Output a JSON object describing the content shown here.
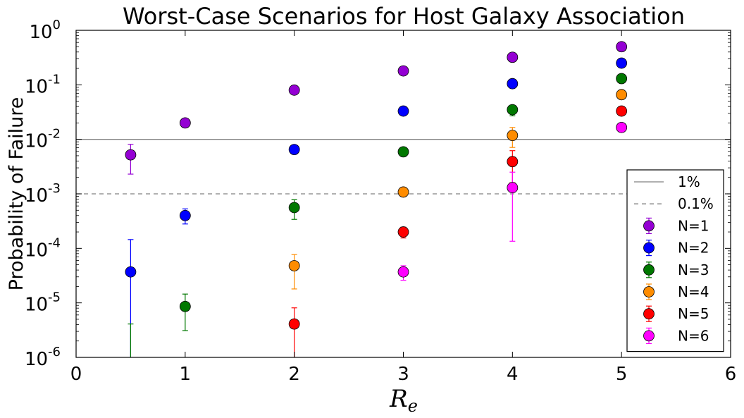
{
  "chart_data": {
    "type": "scatter",
    "title": "Worst-Case Scenarios for Host Galaxy Association",
    "xlabel_base": "R",
    "xlabel_sub": "e",
    "ylabel": "Probability of Failure",
    "xlim": [
      0,
      6
    ],
    "ylim": [
      1e-06,
      1
    ],
    "yscale": "log",
    "grid": false,
    "legend_position": "lower-right",
    "x_ticks": [
      "0",
      "1",
      "2",
      "3",
      "4",
      "5",
      "6"
    ],
    "y_ticks": [
      {
        "base": "10",
        "exp": "-6"
      },
      {
        "base": "10",
        "exp": "-5"
      },
      {
        "base": "10",
        "exp": "-4"
      },
      {
        "base": "10",
        "exp": "-3"
      },
      {
        "base": "10",
        "exp": "-2"
      },
      {
        "base": "10",
        "exp": "-1"
      },
      {
        "base": "10",
        "exp": "0"
      }
    ],
    "reference_lines": [
      {
        "name": "1%",
        "y": 0.01,
        "style": "solid",
        "color": "#808080"
      },
      {
        "name": "0.1%",
        "y": 0.001,
        "style": "dashed",
        "color": "#808080"
      }
    ],
    "series": [
      {
        "name": "N=1",
        "color": "#9400d3",
        "points": [
          {
            "x": 0.5,
            "y": 0.0052,
            "lo": 0.0023,
            "hi": 0.0081
          },
          {
            "x": 1,
            "y": 0.02
          },
          {
            "x": 2,
            "y": 0.08
          },
          {
            "x": 3,
            "y": 0.18
          },
          {
            "x": 4,
            "y": 0.32
          },
          {
            "x": 5,
            "y": 0.5
          }
        ]
      },
      {
        "name": "N=2",
        "color": "#0000ff",
        "points": [
          {
            "x": 0.5,
            "y": 3.7e-05,
            "lo": 1e-06,
            "hi": 0.000145
          },
          {
            "x": 1,
            "y": 0.0004,
            "lo": 0.00028,
            "hi": 0.00053
          },
          {
            "x": 2,
            "y": 0.0065,
            "lo": 0.0054,
            "hi": 0.0076
          },
          {
            "x": 3,
            "y": 0.033
          },
          {
            "x": 4,
            "y": 0.105
          },
          {
            "x": 5,
            "y": 0.25
          }
        ]
      },
      {
        "name": "N=3",
        "color": "#007800",
        "points": [
          {
            "x": 0.5,
            "y": 1e-06,
            "lo": 1e-06,
            "hi": 4.1e-06
          },
          {
            "x": 1,
            "y": 8.6e-06,
            "lo": 3.1e-06,
            "hi": 1.45e-05
          },
          {
            "x": 2,
            "y": 0.00056,
            "lo": 0.00034,
            "hi": 0.00078
          },
          {
            "x": 3,
            "y": 0.0059
          },
          {
            "x": 4,
            "y": 0.035,
            "lo": 0.027,
            "hi": 0.042
          },
          {
            "x": 5,
            "y": 0.13
          }
        ]
      },
      {
        "name": "N=4",
        "color": "#ff8c00",
        "points": [
          {
            "x": 2,
            "y": 4.8e-05,
            "lo": 1.8e-05,
            "hi": 7.7e-05
          },
          {
            "x": 3,
            "y": 0.00108
          },
          {
            "x": 4,
            "y": 0.0118,
            "lo": 0.0071,
            "hi": 0.0165
          },
          {
            "x": 5,
            "y": 0.066
          }
        ]
      },
      {
        "name": "N=5",
        "color": "#ff0000",
        "points": [
          {
            "x": 2,
            "y": 4.1e-06,
            "lo": 1e-06,
            "hi": 8.1e-06
          },
          {
            "x": 3,
            "y": 0.0002,
            "lo": 0.000155,
            "hi": 0.000245
          },
          {
            "x": 4,
            "y": 0.0039,
            "lo": 0.0016,
            "hi": 0.0062
          },
          {
            "x": 5,
            "y": 0.033
          }
        ]
      },
      {
        "name": "N=6",
        "color": "#ff00ff",
        "points": [
          {
            "x": 3,
            "y": 3.7e-05,
            "lo": 2.6e-05,
            "hi": 4.8e-05
          },
          {
            "x": 4,
            "y": 0.0013,
            "lo": 0.000135,
            "hi": 0.0025
          },
          {
            "x": 5,
            "y": 0.0165
          }
        ]
      }
    ]
  }
}
